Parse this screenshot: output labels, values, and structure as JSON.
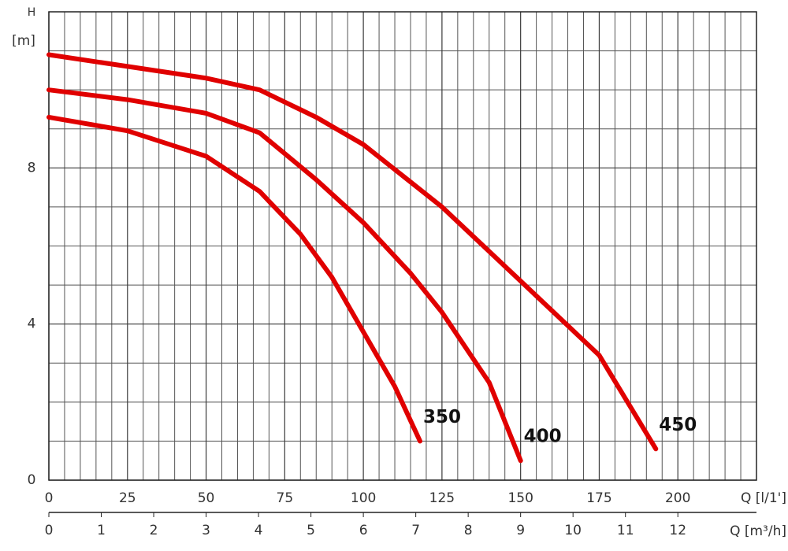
{
  "chart_data": {
    "type": "line",
    "y_label": "H",
    "y_unit": "[m]",
    "x_label": "Q [l/1']",
    "x2_label": "Q [m³/h]",
    "xlim": [
      0,
      225
    ],
    "xticks": [
      0,
      25,
      50,
      75,
      100,
      125,
      150,
      175,
      200
    ],
    "x_minor_ticks": [
      5,
      10,
      15,
      20,
      30,
      35,
      40,
      45,
      55,
      60,
      65,
      70,
      80,
      85,
      90,
      95,
      105,
      110,
      115,
      120,
      130,
      135,
      140,
      145,
      155,
      160,
      165,
      170,
      180,
      185,
      190,
      195,
      205,
      210,
      215,
      220
    ],
    "x2lim": [
      0,
      13.5
    ],
    "x2ticks": [
      0,
      1,
      2,
      3,
      4,
      5,
      6,
      7,
      8,
      9,
      10,
      11,
      12
    ],
    "ylim": [
      0,
      12
    ],
    "yticks": [
      0,
      4,
      8
    ],
    "y_minor_ticks": [
      1,
      2,
      3,
      5,
      6,
      7,
      9,
      10,
      11,
      12
    ],
    "grid": true,
    "series": [
      {
        "name": "350",
        "color": "#e00000",
        "x": [
          0,
          25,
          50,
          67,
          80,
          90,
          100,
          110,
          118
        ],
        "values": [
          9.3,
          8.95,
          8.3,
          7.4,
          6.3,
          5.2,
          3.8,
          2.4,
          1.0
        ]
      },
      {
        "name": "400",
        "color": "#e00000",
        "x": [
          0,
          25,
          50,
          67,
          85,
          100,
          115,
          125,
          140,
          150
        ],
        "values": [
          10.0,
          9.75,
          9.4,
          8.9,
          7.7,
          6.6,
          5.3,
          4.3,
          2.5,
          0.5
        ]
      },
      {
        "name": "450",
        "color": "#e00000",
        "x": [
          0,
          25,
          50,
          67,
          85,
          100,
          125,
          150,
          175,
          193
        ],
        "values": [
          10.9,
          10.6,
          10.3,
          10.0,
          9.3,
          8.6,
          7.0,
          5.1,
          3.2,
          0.8
        ]
      }
    ]
  }
}
